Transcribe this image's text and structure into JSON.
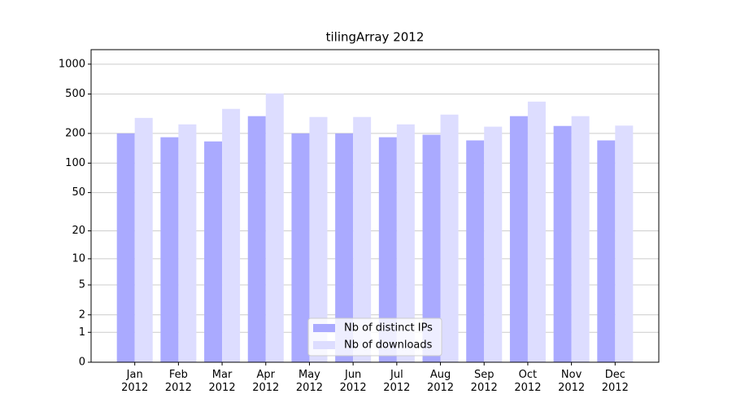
{
  "chart_data": {
    "type": "bar",
    "title": "tilingArray 2012",
    "categories": [
      "Jan 2012",
      "Feb 2012",
      "Mar 2012",
      "Apr 2012",
      "May 2012",
      "Jun 2012",
      "Jul 2012",
      "Aug 2012",
      "Sep 2012",
      "Oct 2012",
      "Nov 2012",
      "Dec 2012"
    ],
    "series": [
      {
        "name": "Nb of distinct IPs",
        "color": "#aaaaff",
        "values": [
          200,
          183,
          166,
          299,
          200,
          200,
          183,
          194,
          170,
          299,
          238,
          170
        ]
      },
      {
        "name": "Nb of downloads",
        "color": "#ddddff",
        "values": [
          287,
          247,
          354,
          507,
          293,
          293,
          247,
          310,
          234,
          419,
          299,
          240
        ]
      }
    ],
    "yscale": "log1p",
    "ylim": [
      0,
      1400
    ],
    "yticks": [
      0,
      1,
      2,
      5,
      10,
      20,
      50,
      100,
      200,
      500,
      1000
    ],
    "grid": true,
    "legend": "lower center"
  }
}
